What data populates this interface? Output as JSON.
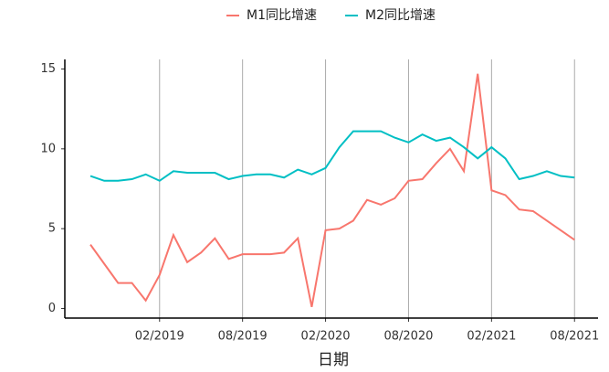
{
  "chart_data": {
    "type": "line",
    "x_label": "日期",
    "x": [
      "2018-09",
      "2018-10",
      "2018-11",
      "2018-12",
      "2019-01",
      "2019-02",
      "2019-03",
      "2019-04",
      "2019-05",
      "2019-06",
      "2019-07",
      "2019-08",
      "2019-09",
      "2019-10",
      "2019-11",
      "2019-12",
      "2020-01",
      "2020-02",
      "2020-03",
      "2020-04",
      "2020-05",
      "2020-06",
      "2020-07",
      "2020-08",
      "2020-09",
      "2020-10",
      "2020-11",
      "2020-12",
      "2021-01",
      "2021-02",
      "2021-03",
      "2021-04",
      "2021-05",
      "2021-06",
      "2021-07",
      "2021-08"
    ],
    "series": [
      {
        "name": "M1同比增速",
        "color": "#F8766D",
        "values": [
          4.0,
          2.8,
          1.6,
          1.6,
          0.5,
          2.1,
          4.6,
          2.9,
          3.5,
          4.4,
          3.1,
          3.4,
          3.4,
          3.4,
          3.5,
          4.4,
          0.1,
          4.9,
          5.0,
          5.5,
          6.8,
          6.5,
          6.9,
          8.0,
          8.1,
          9.1,
          10.0,
          8.6,
          14.7,
          7.4,
          7.1,
          6.2,
          6.1,
          5.5,
          4.9,
          4.3
        ]
      },
      {
        "name": "M2同比增速",
        "color": "#00BFC4",
        "values": [
          8.3,
          8.0,
          8.0,
          8.1,
          8.4,
          8.0,
          8.6,
          8.5,
          8.5,
          8.5,
          8.1,
          8.3,
          8.4,
          8.4,
          8.2,
          8.7,
          8.4,
          8.8,
          10.1,
          11.1,
          11.1,
          11.1,
          10.7,
          10.4,
          10.9,
          10.5,
          10.7,
          10.1,
          9.4,
          10.1,
          9.4,
          8.1,
          8.3,
          8.6,
          8.3,
          8.2
        ]
      }
    ],
    "xticks": [
      {
        "value": "2019-02",
        "label": "02/2019"
      },
      {
        "value": "2019-08",
        "label": "08/2019"
      },
      {
        "value": "2020-02",
        "label": "02/2020"
      },
      {
        "value": "2020-08",
        "label": "08/2020"
      },
      {
        "value": "2021-02",
        "label": "02/2021"
      },
      {
        "value": "2021-08",
        "label": "08/2021"
      }
    ],
    "ylim": [
      -0.6,
      15.6
    ],
    "yticks": [
      0,
      5,
      10,
      15
    ],
    "grid": "x",
    "legend": "top"
  }
}
